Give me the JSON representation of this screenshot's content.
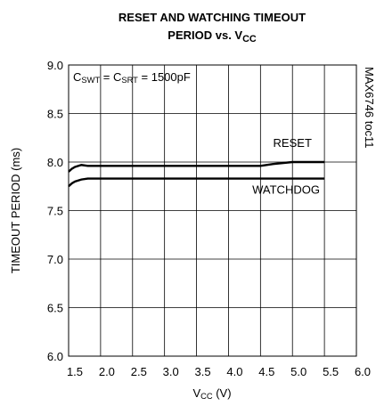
{
  "chart_data": {
    "type": "line",
    "title": [
      [
        "RESET AND WATCHING TIMEOUT"
      ],
      [
        "PERIOD vs. V",
        "CC"
      ]
    ],
    "xlabel": [
      "V",
      "CC",
      " (V)"
    ],
    "ylabel": "TIMEOUT PERIOD (ms)",
    "annotation": [
      "C",
      "SWT",
      " = C",
      "SRT",
      " = 1500pF"
    ],
    "side_note": "MAX6746 toc11",
    "xlim": [
      1.5,
      6.0
    ],
    "ylim": [
      6.0,
      9.0
    ],
    "xticks": [
      1.5,
      {
        "value": 2,
        "label": "2.0"
      },
      2.5,
      {
        "value": 3,
        "label": "3.0"
      },
      3.5,
      {
        "value": 4,
        "label": "4.0"
      },
      4.5,
      {
        "value": 5,
        "label": "5.0"
      },
      5.5,
      {
        "value": 6,
        "label": "6.0"
      }
    ],
    "yticks": [
      {
        "value": 6,
        "label": "6.0"
      },
      6.5,
      {
        "value": 7,
        "label": "7.0"
      },
      7.5,
      {
        "value": 8,
        "label": "8.0"
      },
      8.5,
      {
        "value": 9,
        "label": "9.0"
      }
    ],
    "grid": true,
    "series": [
      {
        "name": "RESET",
        "color": "#000000",
        "label_at": [
          5.0,
          8.2
        ],
        "x": [
          1.5,
          1.55,
          1.6,
          1.7,
          1.8,
          2.0,
          2.5,
          3.0,
          3.5,
          4.0,
          4.5,
          4.7,
          5.0,
          5.2,
          5.5
        ],
        "values": [
          7.9,
          7.93,
          7.95,
          7.97,
          7.96,
          7.96,
          7.96,
          7.96,
          7.96,
          7.96,
          7.96,
          7.98,
          8.0,
          8.0,
          8.0
        ]
      },
      {
        "name": "WATCHDOG",
        "color": "#000000",
        "label_at": [
          4.9,
          7.72
        ],
        "x": [
          1.5,
          1.55,
          1.6,
          1.7,
          1.8,
          2.0,
          2.5,
          3.0,
          3.5,
          4.0,
          4.5,
          5.0,
          5.5
        ],
        "values": [
          7.75,
          7.78,
          7.8,
          7.82,
          7.83,
          7.83,
          7.83,
          7.83,
          7.83,
          7.83,
          7.83,
          7.83,
          7.83
        ]
      }
    ]
  }
}
